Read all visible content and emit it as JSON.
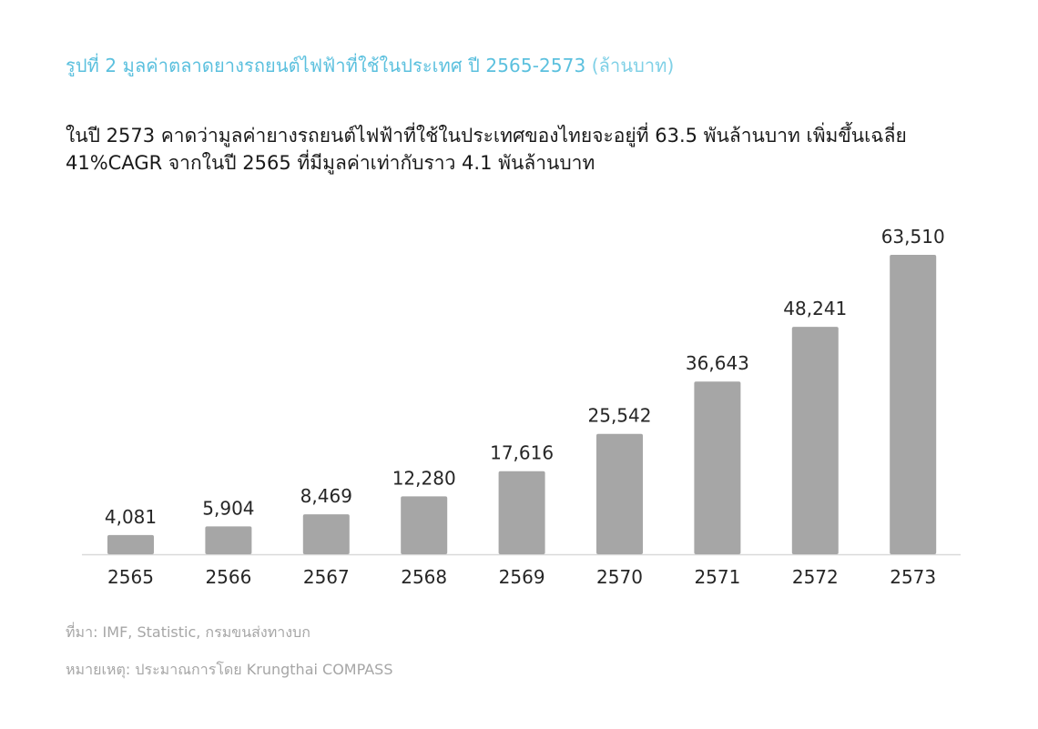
{
  "title": {
    "main": "รูปที่ 2 มูลค่าตลาดยางรถยนต์ไฟฟ้าที่ใช้ในประเทศ ปี 2565-2573",
    "unit": "(ล้านบาท)"
  },
  "summary": {
    "line1": "ในปี 2573 คาดว่ามูลค่ายางรถยนต์ไฟฟ้าที่ใช้ในประเทศของไทยจะอยู่ที่ 63.5 พันล้านบาท เพิ่มขึ้นเฉลี่ย",
    "line2": "41%CAGR จากในปี 2565 ที่มีมูลค่าเท่ากับราว 4.1 พันล้านบาท"
  },
  "chart_data": {
    "type": "bar",
    "categories": [
      "2565",
      "2566",
      "2567",
      "2568",
      "2569",
      "2570",
      "2571",
      "2572",
      "2573"
    ],
    "values": [
      4081,
      5904,
      8469,
      12280,
      17616,
      25542,
      36643,
      48241,
      63510
    ],
    "value_labels": [
      "4,081",
      "5,904",
      "8,469",
      "12,280",
      "17,616",
      "25,542",
      "36,643",
      "48,241",
      "63,510"
    ],
    "title": "",
    "xlabel": "",
    "ylabel": "",
    "ylim": [
      0,
      63510
    ],
    "grid": false,
    "legend": "none",
    "bar_color": "#a6a6a6",
    "axis_color": "#d9d9d9"
  },
  "footnotes": {
    "source": "ที่มา: IMF, Statistic, กรมขนส่งทางบก",
    "remark": "หมายเหตุ: ประมาณการโดย Krungthai COMPASS"
  },
  "colors": {
    "title": "#5bc0de",
    "text": "#1a1a1a",
    "footnote": "#a6a6a6"
  }
}
